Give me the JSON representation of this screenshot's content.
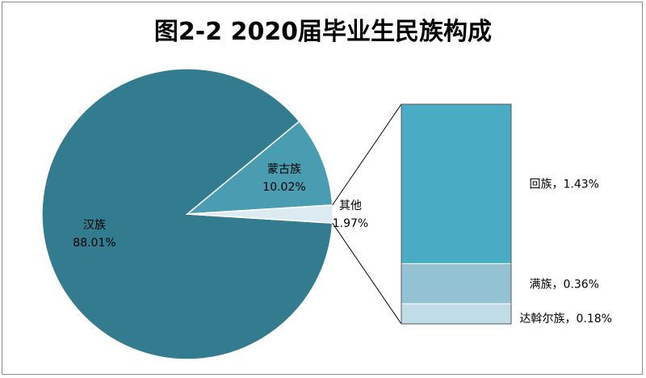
{
  "title": "图2-2  2020届毕业生民族构成",
  "colors": {
    "pie_main": "#337b8f",
    "pie_second": "#4a9cb0",
    "pie_other": "#dcebf1",
    "bar_top": "#4aabc5",
    "bar_mid": "#93c3d3",
    "bar_bottom": "#bfdce7",
    "stroke": "#ffffff",
    "connector": "#000000"
  },
  "chart_data": {
    "type": "pie",
    "title": "图2-2  2020届毕业生民族构成",
    "slices": [
      {
        "name": "汉族",
        "value": 88.01,
        "label": "88.01%"
      },
      {
        "name": "蒙古族",
        "value": 10.02,
        "label": "10.02%"
      },
      {
        "name": "其他",
        "value": 1.97,
        "label": "1.97%"
      }
    ],
    "breakdown": {
      "of": "其他",
      "type": "stacked-bar",
      "items": [
        {
          "name": "回族",
          "value": 1.43,
          "label": "回族，1.43%"
        },
        {
          "name": "满族",
          "value": 0.36,
          "label": "满族，0.36%"
        },
        {
          "name": "达斡尔族",
          "value": 0.18,
          "label": "达斡尔族，0.18%"
        }
      ]
    },
    "legend": "none"
  }
}
